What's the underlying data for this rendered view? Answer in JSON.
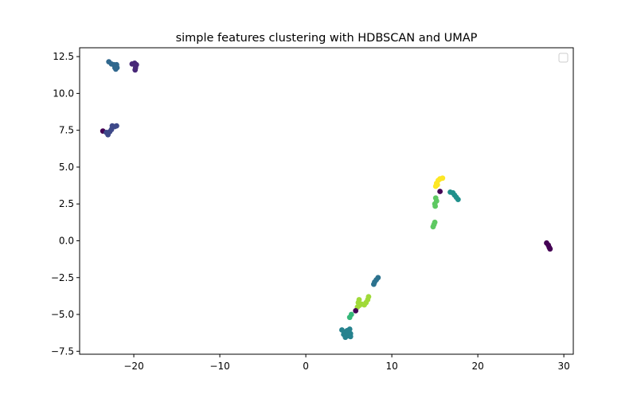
{
  "chart_data": {
    "type": "scatter",
    "title": "simple features clustering with HDBSCAN and UMAP",
    "xlabel": "",
    "ylabel": "",
    "xlim": [
      -26.3,
      31.1
    ],
    "ylim": [
      -7.7,
      13.1
    ],
    "xticks": [
      -20,
      -10,
      0,
      10,
      20,
      30
    ],
    "yticks": [
      -7.5,
      -5.0,
      -2.5,
      0.0,
      2.5,
      5.0,
      7.5,
      10.0,
      12.5
    ],
    "xtick_labels": [
      "−20",
      "−10",
      "0",
      "10",
      "20",
      "30"
    ],
    "ytick_labels": [
      "−7.5",
      "−5.0",
      "−2.5",
      "0.0",
      "2.5",
      "5.0",
      "7.5",
      "10.0",
      "12.5"
    ],
    "grid": false,
    "legend": {
      "placement": "top-right",
      "entries": []
    },
    "colormap": "viridis",
    "points": [
      {
        "x": -22.9,
        "y": 12.15,
        "color": "#31688e"
      },
      {
        "x": -22.6,
        "y": 12.0,
        "color": "#31688e"
      },
      {
        "x": -22.3,
        "y": 11.95,
        "color": "#31688e"
      },
      {
        "x": -22.0,
        "y": 11.95,
        "color": "#31688e"
      },
      {
        "x": -22.2,
        "y": 11.75,
        "color": "#31688e"
      },
      {
        "x": -21.95,
        "y": 11.75,
        "color": "#31688e"
      },
      {
        "x": -22.1,
        "y": 11.65,
        "color": "#31688e"
      },
      {
        "x": -20.2,
        "y": 12.0,
        "color": "#482878"
      },
      {
        "x": -19.9,
        "y": 12.05,
        "color": "#482878"
      },
      {
        "x": -19.7,
        "y": 11.95,
        "color": "#482878"
      },
      {
        "x": -19.8,
        "y": 11.75,
        "color": "#482878"
      },
      {
        "x": -19.85,
        "y": 11.6,
        "color": "#482878"
      },
      {
        "x": -23.6,
        "y": 7.45,
        "color": "#440154"
      },
      {
        "x": -23.2,
        "y": 7.35,
        "color": "#3e4989"
      },
      {
        "x": -23.0,
        "y": 7.2,
        "color": "#3e4989"
      },
      {
        "x": -22.8,
        "y": 7.4,
        "color": "#3e4989"
      },
      {
        "x": -22.6,
        "y": 7.55,
        "color": "#3e4989"
      },
      {
        "x": -22.5,
        "y": 7.8,
        "color": "#3e4989"
      },
      {
        "x": -22.2,
        "y": 7.75,
        "color": "#3e4989"
      },
      {
        "x": -22.0,
        "y": 7.8,
        "color": "#3e4989"
      },
      {
        "x": 15.6,
        "y": 4.2,
        "color": "#fde725"
      },
      {
        "x": 15.9,
        "y": 4.25,
        "color": "#fde725"
      },
      {
        "x": 15.4,
        "y": 4.1,
        "color": "#fde725"
      },
      {
        "x": 15.2,
        "y": 3.9,
        "color": "#fde725"
      },
      {
        "x": 15.1,
        "y": 3.7,
        "color": "#fde725"
      },
      {
        "x": 15.3,
        "y": 3.8,
        "color": "#fde725"
      },
      {
        "x": 15.6,
        "y": 3.35,
        "color": "#440154"
      },
      {
        "x": 16.8,
        "y": 3.3,
        "color": "#21918c"
      },
      {
        "x": 17.1,
        "y": 3.25,
        "color": "#21918c"
      },
      {
        "x": 17.3,
        "y": 3.1,
        "color": "#21918c"
      },
      {
        "x": 17.5,
        "y": 2.95,
        "color": "#21918c"
      },
      {
        "x": 17.7,
        "y": 2.8,
        "color": "#21918c"
      },
      {
        "x": 15.1,
        "y": 2.9,
        "color": "#5ec962"
      },
      {
        "x": 15.2,
        "y": 2.7,
        "color": "#5ec962"
      },
      {
        "x": 15.0,
        "y": 2.5,
        "color": "#5ec962"
      },
      {
        "x": 15.05,
        "y": 2.35,
        "color": "#5ec962"
      },
      {
        "x": 15.0,
        "y": 1.25,
        "color": "#5ec962"
      },
      {
        "x": 14.9,
        "y": 1.1,
        "color": "#5ec962"
      },
      {
        "x": 14.8,
        "y": 0.95,
        "color": "#5ec962"
      },
      {
        "x": 28.0,
        "y": -0.15,
        "color": "#440154"
      },
      {
        "x": 28.2,
        "y": -0.3,
        "color": "#440154"
      },
      {
        "x": 28.3,
        "y": -0.45,
        "color": "#440154"
      },
      {
        "x": 28.4,
        "y": -0.55,
        "color": "#440154"
      },
      {
        "x": 8.4,
        "y": -2.5,
        "color": "#2c728e"
      },
      {
        "x": 8.2,
        "y": -2.65,
        "color": "#2c728e"
      },
      {
        "x": 8.0,
        "y": -2.8,
        "color": "#2c728e"
      },
      {
        "x": 7.9,
        "y": -2.95,
        "color": "#2c728e"
      },
      {
        "x": 7.3,
        "y": -3.8,
        "color": "#a0da39"
      },
      {
        "x": 7.2,
        "y": -4.0,
        "color": "#a0da39"
      },
      {
        "x": 7.0,
        "y": -4.2,
        "color": "#a0da39"
      },
      {
        "x": 6.8,
        "y": -4.35,
        "color": "#a0da39"
      },
      {
        "x": 6.5,
        "y": -4.3,
        "color": "#a0da39"
      },
      {
        "x": 6.2,
        "y": -4.4,
        "color": "#a0da39"
      },
      {
        "x": 6.1,
        "y": -4.2,
        "color": "#a0da39"
      },
      {
        "x": 6.2,
        "y": -4.0,
        "color": "#a0da39"
      },
      {
        "x": 6.0,
        "y": -4.5,
        "color": "#a0da39"
      },
      {
        "x": 5.8,
        "y": -4.75,
        "color": "#440154"
      },
      {
        "x": 5.3,
        "y": -5.0,
        "color": "#35b779"
      },
      {
        "x": 5.1,
        "y": -5.2,
        "color": "#35b779"
      },
      {
        "x": 4.2,
        "y": -6.05,
        "color": "#26828e"
      },
      {
        "x": 4.5,
        "y": -6.2,
        "color": "#26828e"
      },
      {
        "x": 4.8,
        "y": -6.1,
        "color": "#26828e"
      },
      {
        "x": 5.1,
        "y": -6.0,
        "color": "#26828e"
      },
      {
        "x": 4.4,
        "y": -6.35,
        "color": "#26828e"
      },
      {
        "x": 4.7,
        "y": -6.4,
        "color": "#26828e"
      },
      {
        "x": 5.0,
        "y": -6.45,
        "color": "#26828e"
      },
      {
        "x": 5.2,
        "y": -6.5,
        "color": "#26828e"
      },
      {
        "x": 4.9,
        "y": -6.25,
        "color": "#26828e"
      },
      {
        "x": 5.2,
        "y": -6.3,
        "color": "#26828e"
      },
      {
        "x": 4.6,
        "y": -6.55,
        "color": "#26828e"
      }
    ]
  }
}
